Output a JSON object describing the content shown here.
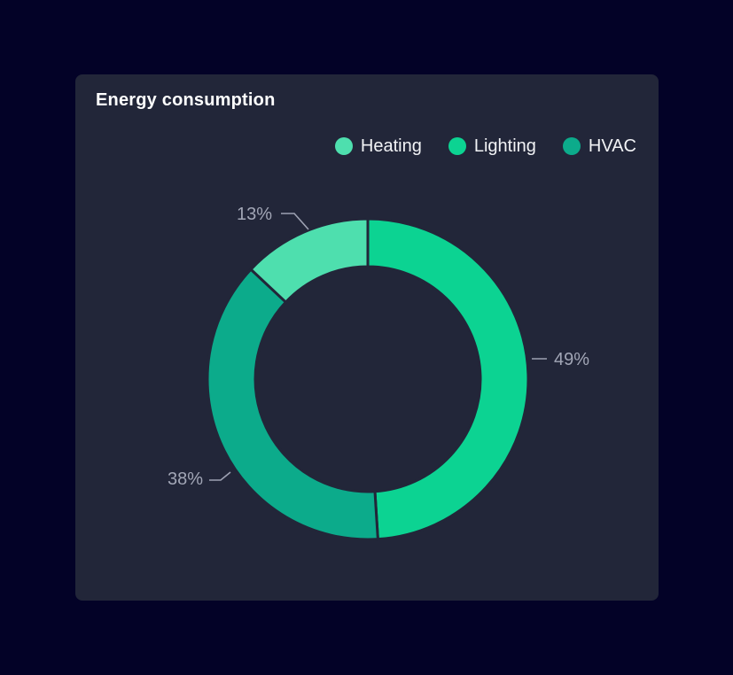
{
  "card": {
    "title": "Energy consumption"
  },
  "colors": {
    "page_bg": "#030227",
    "card_bg": "#222639",
    "title_text": "#ffffff",
    "legend_text": "#f2f3f6",
    "callout_text": "#a2a6b6",
    "heating": "#4edfae",
    "lighting": "#0cd392",
    "hvac": "#0cab8b"
  },
  "chart_data": {
    "type": "pie",
    "subtype": "donut",
    "title": "Energy consumption",
    "unit": "%",
    "slices": [
      {
        "label": "Heating",
        "value": 13,
        "color": "#4edfae"
      },
      {
        "label": "Lighting",
        "value": 49,
        "color": "#0cd392"
      },
      {
        "label": "HVAC",
        "value": 38,
        "color": "#0cab8b"
      }
    ],
    "legend": [
      "Heating",
      "Lighting",
      "HVAC"
    ],
    "legend_position": "top-right",
    "draw_order": [
      "Lighting",
      "HVAC",
      "Heating"
    ],
    "start_angle_deg": 0,
    "clockwise": true,
    "inner_radius_ratio": 0.7,
    "data_labels": [
      "13%",
      "49%",
      "38%"
    ]
  }
}
